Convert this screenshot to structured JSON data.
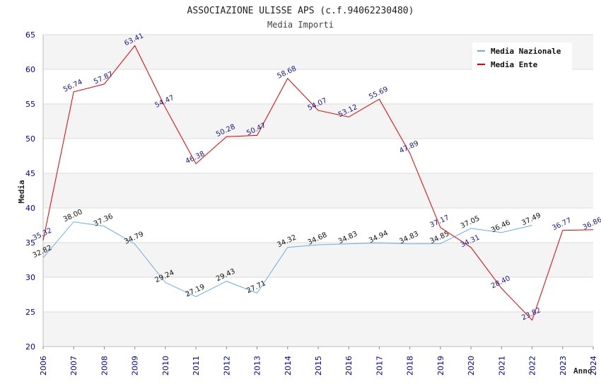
{
  "chart_data": {
    "type": "line",
    "title": "ASSOCIAZIONE ULISSE APS (c.f.94062230480)",
    "subtitle": "Media Importi",
    "xlabel": "Anno",
    "ylabel": "Media",
    "ylim": [
      20,
      65
    ],
    "yticks": [
      20,
      25,
      30,
      35,
      40,
      45,
      50,
      55,
      60,
      65
    ],
    "x": [
      "2006",
      "2007",
      "2008",
      "2009",
      "2010",
      "2011",
      "2012",
      "2013",
      "2014",
      "2015",
      "2016",
      "2017",
      "2018",
      "2019",
      "2020",
      "2021",
      "2022",
      "2023",
      "2024"
    ],
    "grid": true,
    "legend_position": "top-right",
    "series": [
      {
        "name": "Media Nazionale",
        "color": "#6aaee6",
        "values": [
          32.82,
          38.0,
          37.36,
          34.79,
          29.24,
          27.19,
          29.43,
          27.71,
          34.32,
          34.68,
          34.83,
          34.94,
          34.83,
          34.85,
          37.05,
          36.46,
          37.49,
          null,
          null
        ],
        "labels": [
          "32.82",
          "38.00",
          "37.36",
          "34.79",
          "29.24",
          "27.19",
          "29.43",
          "27.71",
          "34.32",
          "34.68",
          "34.83",
          "34.94",
          "34.83",
          "34.85",
          "37.05",
          "36.46",
          "37.49",
          "",
          ""
        ]
      },
      {
        "name": "Media Ente",
        "color": "#e00000",
        "values": [
          35.32,
          56.74,
          57.87,
          63.41,
          54.47,
          46.38,
          50.28,
          50.47,
          58.68,
          54.07,
          53.12,
          55.69,
          47.89,
          37.17,
          34.31,
          28.4,
          23.82,
          36.77,
          36.86
        ],
        "labels": [
          "35.32",
          "56.74",
          "57.87",
          "63.41",
          "54.47",
          "46.38",
          "50.28",
          "50.47",
          "58.68",
          "54.07",
          "53.12",
          "55.69",
          "47.89",
          "37.17",
          "34.31",
          "28.40",
          "23.82",
          "36.77",
          "36.86"
        ]
      }
    ]
  }
}
